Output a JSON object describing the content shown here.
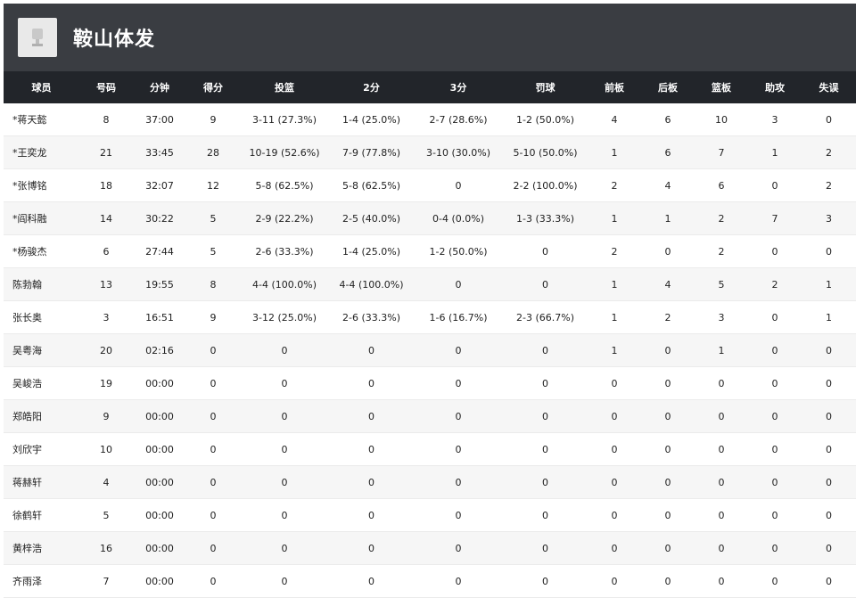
{
  "team": {
    "name": "鞍山体发",
    "logo_icon": "team-logo-icon"
  },
  "colors": {
    "header_bg": "#3a3d42",
    "table_header_bg": "#22252a",
    "row_alt_bg": "#f6f6f6"
  },
  "table": {
    "columns": [
      "球员",
      "号码",
      "分钟",
      "得分",
      "投篮",
      "2分",
      "3分",
      "罚球",
      "前板",
      "后板",
      "篮板",
      "助攻",
      "失误"
    ],
    "rows": [
      [
        "*蒋天懿",
        "8",
        "37:00",
        "9",
        "3-11 (27.3%)",
        "1-4 (25.0%)",
        "2-7 (28.6%)",
        "1-2 (50.0%)",
        "4",
        "6",
        "10",
        "3",
        "0"
      ],
      [
        "*王奕龙",
        "21",
        "33:45",
        "28",
        "10-19 (52.6%)",
        "7-9 (77.8%)",
        "3-10 (30.0%)",
        "5-10 (50.0%)",
        "1",
        "6",
        "7",
        "1",
        "2"
      ],
      [
        "*张博铭",
        "18",
        "32:07",
        "12",
        "5-8 (62.5%)",
        "5-8 (62.5%)",
        "0",
        "2-2 (100.0%)",
        "2",
        "4",
        "6",
        "0",
        "2"
      ],
      [
        "*阎科融",
        "14",
        "30:22",
        "5",
        "2-9 (22.2%)",
        "2-5 (40.0%)",
        "0-4 (0.0%)",
        "1-3 (33.3%)",
        "1",
        "1",
        "2",
        "7",
        "3"
      ],
      [
        "*杨骏杰",
        "6",
        "27:44",
        "5",
        "2-6 (33.3%)",
        "1-4 (25.0%)",
        "1-2 (50.0%)",
        "0",
        "2",
        "0",
        "2",
        "0",
        "0"
      ],
      [
        "陈勃翰",
        "13",
        "19:55",
        "8",
        "4-4 (100.0%)",
        "4-4 (100.0%)",
        "0",
        "0",
        "1",
        "4",
        "5",
        "2",
        "1"
      ],
      [
        "张长奥",
        "3",
        "16:51",
        "9",
        "3-12 (25.0%)",
        "2-6 (33.3%)",
        "1-6 (16.7%)",
        "2-3 (66.7%)",
        "1",
        "2",
        "3",
        "0",
        "1"
      ],
      [
        "吴粤海",
        "20",
        "02:16",
        "0",
        "0",
        "0",
        "0",
        "0",
        "1",
        "0",
        "1",
        "0",
        "0"
      ],
      [
        "吴峻浩",
        "19",
        "00:00",
        "0",
        "0",
        "0",
        "0",
        "0",
        "0",
        "0",
        "0",
        "0",
        "0"
      ],
      [
        "郑皓阳",
        "9",
        "00:00",
        "0",
        "0",
        "0",
        "0",
        "0",
        "0",
        "0",
        "0",
        "0",
        "0"
      ],
      [
        "刘欣宇",
        "10",
        "00:00",
        "0",
        "0",
        "0",
        "0",
        "0",
        "0",
        "0",
        "0",
        "0",
        "0"
      ],
      [
        "蒋赫轩",
        "4",
        "00:00",
        "0",
        "0",
        "0",
        "0",
        "0",
        "0",
        "0",
        "0",
        "0",
        "0"
      ],
      [
        "徐鹤轩",
        "5",
        "00:00",
        "0",
        "0",
        "0",
        "0",
        "0",
        "0",
        "0",
        "0",
        "0",
        "0"
      ],
      [
        "黄梓浩",
        "16",
        "00:00",
        "0",
        "0",
        "0",
        "0",
        "0",
        "0",
        "0",
        "0",
        "0",
        "0"
      ],
      [
        "齐雨泽",
        "7",
        "00:00",
        "0",
        "0",
        "0",
        "0",
        "0",
        "0",
        "0",
        "0",
        "0",
        "0"
      ]
    ]
  }
}
